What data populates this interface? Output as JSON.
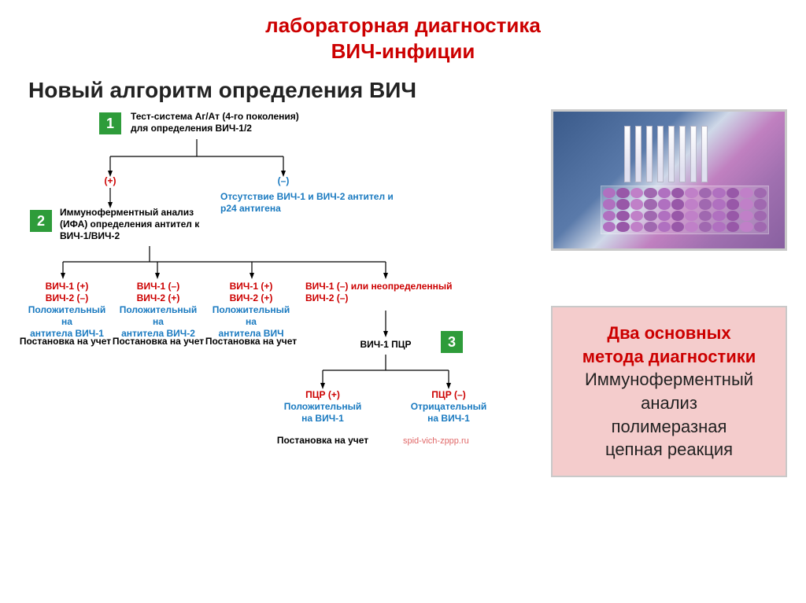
{
  "title_line1": "лабораторная диагностика",
  "title_line2": "ВИЧ-инфиции",
  "subtitle": "Новый алгоритм определения ВИЧ",
  "nums": {
    "n1": "1",
    "n2": "2",
    "n3": "3"
  },
  "step1_l1": "Тест-система Аг/Ат (4-го поколения)",
  "step1_l2": "для определения ВИЧ-1/2",
  "branch_plus": "(+)",
  "branch_minus": "(–)",
  "absent_l1": "Отсутствие ВИЧ-1 и ВИЧ-2 антител и",
  "absent_l2": "p24 антигена",
  "step2_l1": "Иммуноферментный анализ",
  "step2_l2": "(ИФА) определения антител к",
  "step2_l3": "ВИЧ-1/ВИЧ-2",
  "col1_r1": "ВИЧ-1 (+)",
  "col1_r2": "ВИЧ-2 (–)",
  "col1_b1": "Положительный на",
  "col1_b2": "антитела ВИЧ-1",
  "col2_r1": "ВИЧ-1 (–)",
  "col2_r2": "ВИЧ-2 (+)",
  "col2_b1": "Положительный на",
  "col2_b2": "антитела ВИЧ-2",
  "col3_r1": "ВИЧ-1 (+)",
  "col3_r2": "ВИЧ-2 (+)",
  "col3_b1": "Положительный на",
  "col3_b2": "антитела ВИЧ",
  "col4_r1": "ВИЧ-1 (–) или неопределенный",
  "col4_r2": "ВИЧ-2 (–)",
  "register": "Постановка на учет",
  "pcr_label": "ВИЧ-1 ПЦР",
  "pcr_plus_l1": "ПЦР (+)",
  "pcr_plus_l2": "Положительный",
  "pcr_plus_l3": "на ВИЧ-1",
  "pcr_minus_l1": "ПЦР (–)",
  "pcr_minus_l2": "Отрицательный",
  "pcr_minus_l3": "на ВИЧ-1",
  "watermark": "spid-vich-zppp.ru",
  "info_head1": "Два основных",
  "info_head2": "метода диагностики",
  "info_body1": "Иммуноферментный",
  "info_body2": "анализ",
  "info_body3": "полимеразная",
  "info_body4": "цепная реакция",
  "colors": {
    "title_red": "#cc0000",
    "green_box": "#2e9c3a",
    "blue_text": "#1a7ac0",
    "info_bg": "#f4cccc",
    "photo_border": "#c9c9c9"
  },
  "lab_photo": {
    "tube_count": 8,
    "tube_left_start": 90,
    "tube_gap": 14,
    "well_rows": 4,
    "well_cols": 12,
    "well_colors": [
      "#b070c0",
      "#9858a8",
      "#c080c8",
      "#a068b0"
    ]
  }
}
